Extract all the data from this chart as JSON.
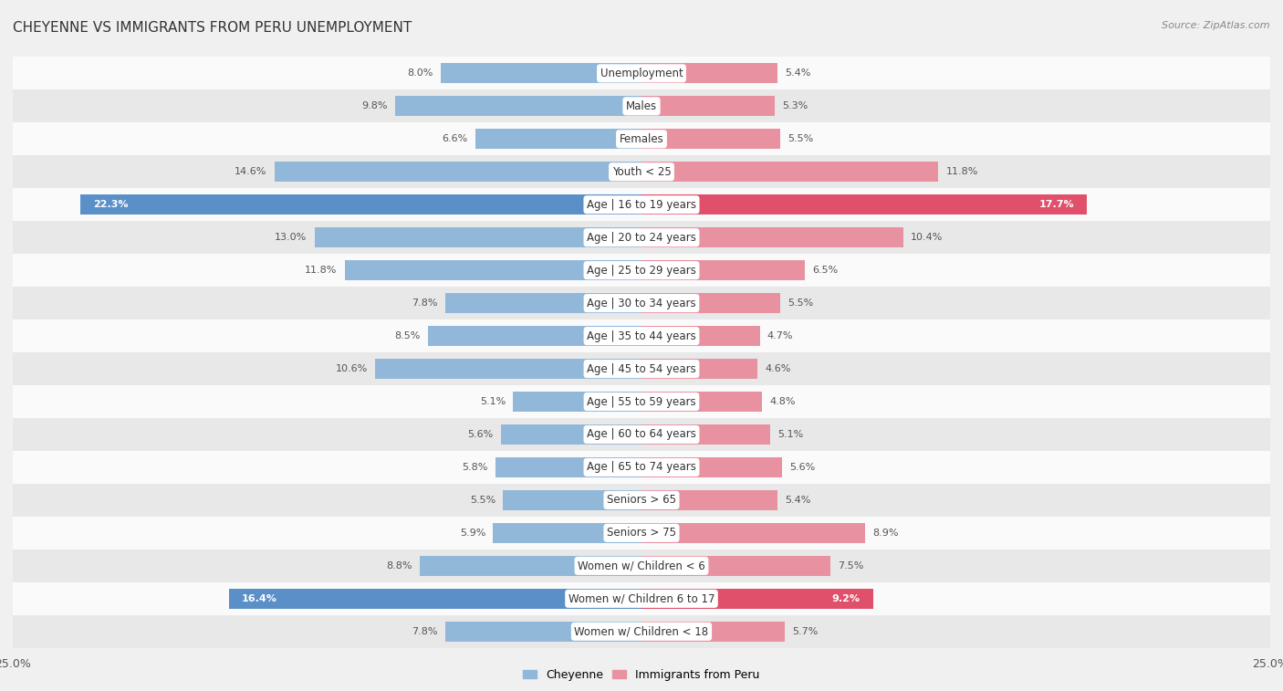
{
  "title": "CHEYENNE VS IMMIGRANTS FROM PERU UNEMPLOYMENT",
  "source": "Source: ZipAtlas.com",
  "categories": [
    "Unemployment",
    "Males",
    "Females",
    "Youth < 25",
    "Age | 16 to 19 years",
    "Age | 20 to 24 years",
    "Age | 25 to 29 years",
    "Age | 30 to 34 years",
    "Age | 35 to 44 years",
    "Age | 45 to 54 years",
    "Age | 55 to 59 years",
    "Age | 60 to 64 years",
    "Age | 65 to 74 years",
    "Seniors > 65",
    "Seniors > 75",
    "Women w/ Children < 6",
    "Women w/ Children 6 to 17",
    "Women w/ Children < 18"
  ],
  "cheyenne": [
    8.0,
    9.8,
    6.6,
    14.6,
    22.3,
    13.0,
    11.8,
    7.8,
    8.5,
    10.6,
    5.1,
    5.6,
    5.8,
    5.5,
    5.9,
    8.8,
    16.4,
    7.8
  ],
  "peru": [
    5.4,
    5.3,
    5.5,
    11.8,
    17.7,
    10.4,
    6.5,
    5.5,
    4.7,
    4.6,
    4.8,
    5.1,
    5.6,
    5.4,
    8.9,
    7.5,
    9.2,
    5.7
  ],
  "cheyenne_color": "#91b8d9",
  "peru_color": "#e891a0",
  "cheyenne_highlight_color": "#5b8fc7",
  "peru_highlight_color": "#e0506a",
  "highlight_rows": [
    4,
    16
  ],
  "xlim": 25.0,
  "bar_height": 0.62,
  "bg_color": "#f0f0f0",
  "row_alt_color": "#e8e8e8",
  "row_white_color": "#fafafa",
  "legend_cheyenne": "Cheyenne",
  "legend_peru": "Immigrants from Peru",
  "title_fontsize": 11,
  "label_fontsize": 8.5,
  "value_fontsize": 8.0
}
